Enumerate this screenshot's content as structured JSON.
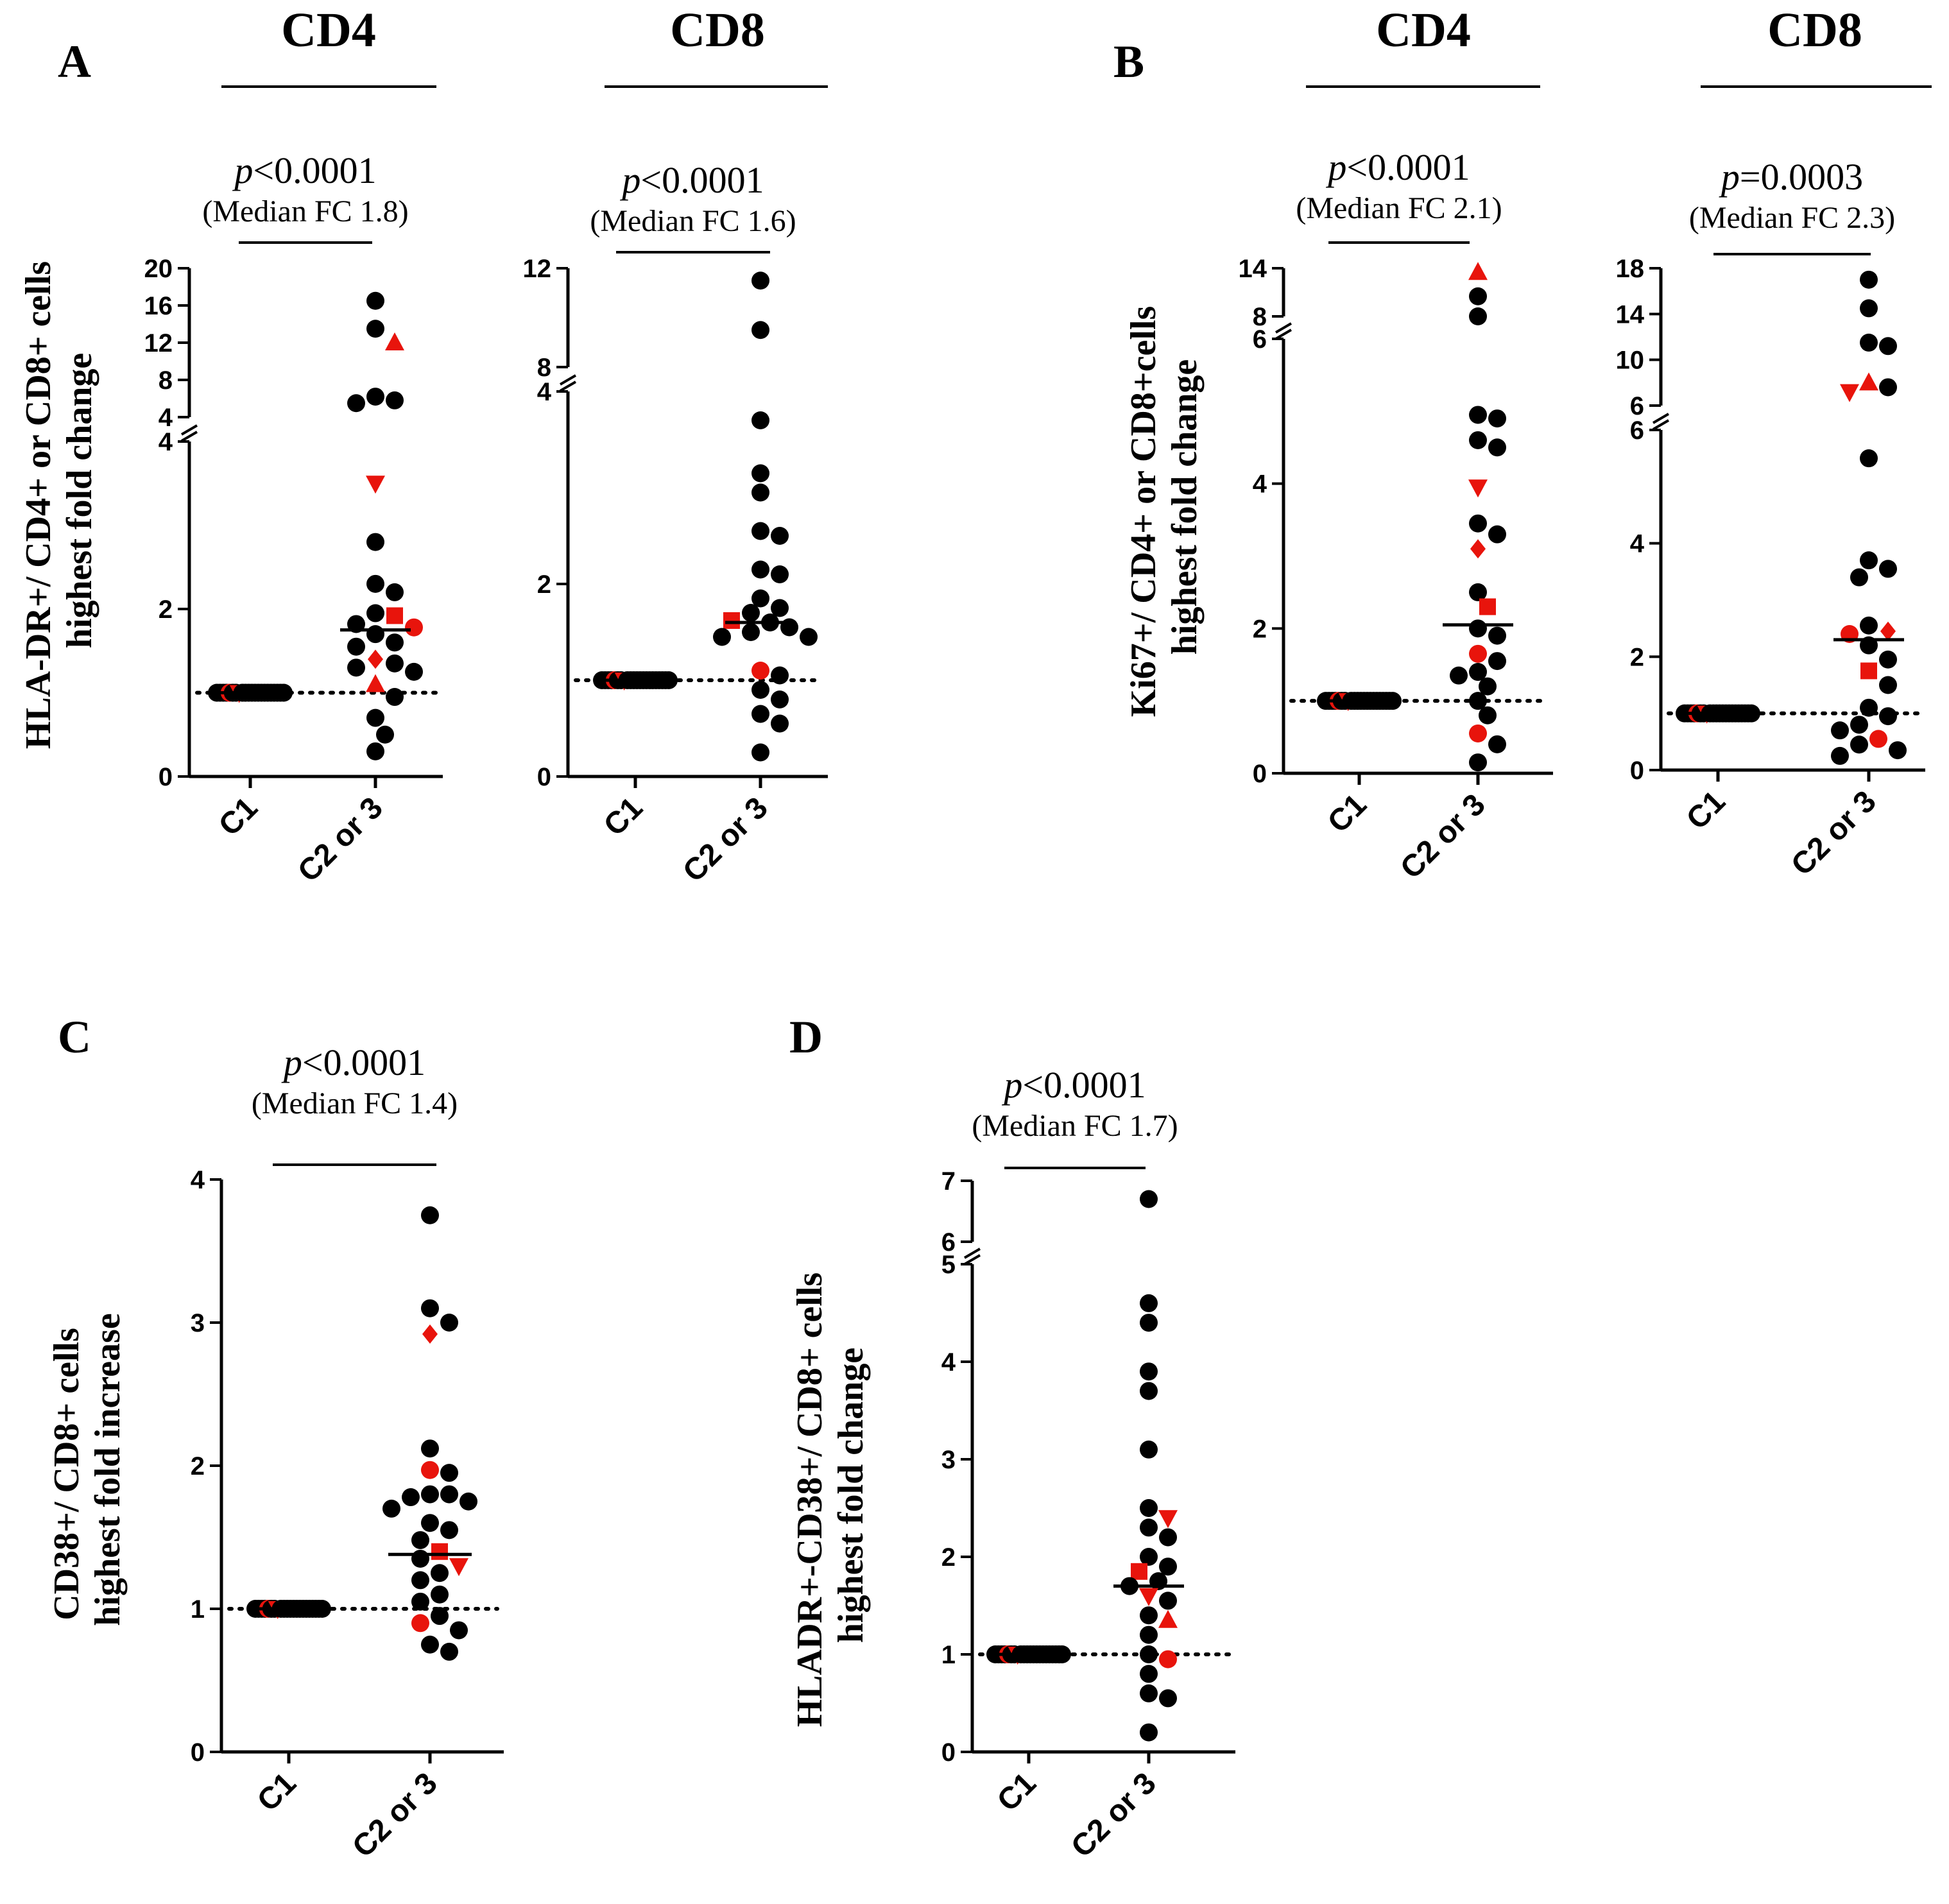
{
  "colors": {
    "ink": "#000000",
    "highlight": "#e8140c"
  },
  "panel_letters": {
    "A": "A",
    "B": "B",
    "C": "C",
    "D": "D"
  },
  "group_titles": {
    "a_cd4": "CD4",
    "a_cd8": "CD8",
    "b_cd4": "CD4",
    "b_cd8": "CD8"
  },
  "y_labels": {
    "a": [
      "HLA-DR+/ CD4+ or CD8+ cells",
      "highest fold change"
    ],
    "b": [
      "Ki67+/ CD4+ or CD8+cells",
      "highest fold change"
    ],
    "c": [
      "CD38+/ CD8+ cells",
      "highest fold increase"
    ],
    "d": [
      "HLADR+-CD38+/ CD8+ cells",
      "highest fold change"
    ]
  },
  "chart_data": [
    {
      "id": "A-CD4",
      "type": "scatter",
      "title": "CD4",
      "p_prefix": "p",
      "p_rest": "<0.0001",
      "median_label": "(Median FC 1.8)",
      "categories": [
        "C1",
        "C2 or 3"
      ],
      "y_ticks": [
        "0",
        "2",
        "4",
        "4",
        "8",
        "12",
        "16",
        "20"
      ],
      "reference_line": 1,
      "median": 1.75,
      "c1": {
        "n": 22,
        "value": 1.0
      },
      "c2": [
        {
          "y": 16.5
        },
        {
          "y": 13.5
        },
        {
          "y": 12.0,
          "shape": "triangle-up",
          "red": true
        },
        {
          "y": 6.2
        },
        {
          "y": 5.8
        },
        {
          "y": 5.5
        },
        {
          "y": 3.5,
          "shape": "triangle-down",
          "red": true
        },
        {
          "y": 2.8
        },
        {
          "y": 2.3
        },
        {
          "y": 2.2
        },
        {
          "y": 1.95
        },
        {
          "y": 1.92,
          "shape": "square",
          "red": true
        },
        {
          "y": 1.82
        },
        {
          "y": 1.78,
          "red": true
        },
        {
          "y": 1.7
        },
        {
          "y": 1.6
        },
        {
          "y": 1.55
        },
        {
          "y": 1.4,
          "shape": "diamond",
          "red": true
        },
        {
          "y": 1.35
        },
        {
          "y": 1.3
        },
        {
          "y": 1.25
        },
        {
          "y": 1.1,
          "shape": "triangle-up",
          "red": true
        },
        {
          "y": 0.95
        },
        {
          "y": 0.7
        },
        {
          "y": 0.5
        },
        {
          "y": 0.3
        }
      ]
    },
    {
      "id": "A-CD8",
      "type": "scatter",
      "title": "CD8",
      "p_prefix": "p",
      "p_rest": "<0.0001",
      "median_label": "(Median FC 1.6)",
      "categories": [
        "C1",
        "C2 or 3"
      ],
      "y_ticks": [
        "0",
        "2",
        "4",
        "8",
        "12"
      ],
      "reference_line": 1,
      "median": 1.6,
      "c1": {
        "n": 22,
        "value": 1.0
      },
      "c2": [
        {
          "y": 11.5
        },
        {
          "y": 9.5
        },
        {
          "y": 3.7
        },
        {
          "y": 3.15
        },
        {
          "y": 2.95
        },
        {
          "y": 2.55
        },
        {
          "y": 2.5
        },
        {
          "y": 2.15
        },
        {
          "y": 2.1
        },
        {
          "y": 1.85
        },
        {
          "y": 1.75
        },
        {
          "y": 1.7
        },
        {
          "y": 1.62,
          "shape": "square",
          "red": true
        },
        {
          "y": 1.6
        },
        {
          "y": 1.55
        },
        {
          "y": 1.5
        },
        {
          "y": 1.45
        },
        {
          "y": 1.45
        },
        {
          "y": 1.1,
          "red": true
        },
        {
          "y": 1.05
        },
        {
          "y": 0.9
        },
        {
          "y": 0.8
        },
        {
          "y": 0.65
        },
        {
          "y": 0.55
        },
        {
          "y": 0.25
        }
      ]
    },
    {
      "id": "B-CD4",
      "type": "scatter",
      "title": "CD4",
      "p_prefix": "p",
      "p_rest": "<0.0001",
      "median_label": "(Median FC 2.1)",
      "categories": [
        "C1",
        "C2 or 3"
      ],
      "y_ticks": [
        "0",
        "2",
        "4",
        "6",
        "8",
        "14"
      ],
      "reference_line": 1,
      "median": 2.05,
      "c1": {
        "n": 22,
        "value": 1.0
      },
      "c2": [
        {
          "y": 13.5,
          "shape": "triangle-up",
          "red": true
        },
        {
          "y": 10.5
        },
        {
          "y": 7.2
        },
        {
          "y": 4.95
        },
        {
          "y": 4.9
        },
        {
          "y": 4.6
        },
        {
          "y": 4.5
        },
        {
          "y": 3.95,
          "shape": "triangle-down",
          "red": true
        },
        {
          "y": 3.45
        },
        {
          "y": 3.3
        },
        {
          "y": 3.1,
          "shape": "diamond",
          "red": true
        },
        {
          "y": 2.5
        },
        {
          "y": 2.3,
          "shape": "square",
          "red": true
        },
        {
          "y": 2.0
        },
        {
          "y": 1.9
        },
        {
          "y": 1.65,
          "red": true
        },
        {
          "y": 1.55
        },
        {
          "y": 1.4
        },
        {
          "y": 1.35
        },
        {
          "y": 1.2
        },
        {
          "y": 1.0
        },
        {
          "y": 0.8
        },
        {
          "y": 0.55,
          "red": true
        },
        {
          "y": 0.4
        },
        {
          "y": 0.15
        }
      ]
    },
    {
      "id": "B-CD8",
      "type": "scatter",
      "title": "CD8",
      "p_prefix": "p",
      "p_rest": "=0.0003",
      "median_label": "(Median FC 2.3)",
      "categories": [
        "C1",
        "C2 or 3"
      ],
      "y_ticks": [
        "0",
        "2",
        "4",
        "6",
        "6",
        "10",
        "14",
        "18"
      ],
      "reference_line": 1,
      "median": 2.3,
      "c1": {
        "n": 22,
        "value": 1.0
      },
      "c2": [
        {
          "y": 17.0
        },
        {
          "y": 14.5
        },
        {
          "y": 11.5
        },
        {
          "y": 11.2
        },
        {
          "y": 8.0,
          "shape": "triangle-up",
          "red": true
        },
        {
          "y": 7.6
        },
        {
          "y": 7.2,
          "shape": "triangle-down",
          "red": true
        },
        {
          "y": 5.5
        },
        {
          "y": 3.7
        },
        {
          "y": 3.55
        },
        {
          "y": 3.4
        },
        {
          "y": 2.55
        },
        {
          "y": 2.45,
          "shape": "diamond",
          "red": true
        },
        {
          "y": 2.4,
          "red": true
        },
        {
          "y": 2.2
        },
        {
          "y": 1.95
        },
        {
          "y": 1.75,
          "shape": "square",
          "red": true
        },
        {
          "y": 1.5
        },
        {
          "y": 1.1
        },
        {
          "y": 0.95
        },
        {
          "y": 0.8
        },
        {
          "y": 0.7
        },
        {
          "y": 0.55,
          "red": true
        },
        {
          "y": 0.45
        },
        {
          "y": 0.35
        },
        {
          "y": 0.25
        }
      ]
    },
    {
      "id": "C",
      "type": "scatter",
      "title": "",
      "p_prefix": "p",
      "p_rest": "<0.0001",
      "median_label": "(Median FC 1.4)",
      "categories": [
        "C1",
        "C2 or 3"
      ],
      "y_ticks": [
        "0",
        "1",
        "2",
        "3",
        "4"
      ],
      "reference_line": 1,
      "median": 1.38,
      "c1": {
        "n": 22,
        "value": 1.0
      },
      "c2": [
        {
          "y": 3.75
        },
        {
          "y": 3.1
        },
        {
          "y": 3.0
        },
        {
          "y": 2.92,
          "shape": "diamond",
          "red": true
        },
        {
          "y": 2.12
        },
        {
          "y": 1.97,
          "red": true
        },
        {
          "y": 1.95
        },
        {
          "y": 1.8
        },
        {
          "y": 1.8
        },
        {
          "y": 1.78
        },
        {
          "y": 1.75
        },
        {
          "y": 1.7
        },
        {
          "y": 1.6
        },
        {
          "y": 1.55
        },
        {
          "y": 1.48
        },
        {
          "y": 1.4,
          "shape": "square",
          "red": true
        },
        {
          "y": 1.35
        },
        {
          "y": 1.3,
          "shape": "triangle-down",
          "red": true
        },
        {
          "y": 1.25
        },
        {
          "y": 1.2
        },
        {
          "y": 1.1
        },
        {
          "y": 1.05
        },
        {
          "y": 0.95
        },
        {
          "y": 0.9,
          "red": true
        },
        {
          "y": 0.85
        },
        {
          "y": 0.75
        },
        {
          "y": 0.7
        }
      ]
    },
    {
      "id": "D",
      "type": "scatter",
      "title": "",
      "p_prefix": "p",
      "p_rest": "<0.0001",
      "median_label": "(Median FC 1.7)",
      "categories": [
        "C1",
        "C2 or 3"
      ],
      "y_ticks": [
        "0",
        "1",
        "2",
        "3",
        "4",
        "5",
        "6",
        "7"
      ],
      "reference_line": 1,
      "median": 1.7,
      "c1": {
        "n": 22,
        "value": 1.0
      },
      "c2": [
        {
          "y": 6.7
        },
        {
          "y": 4.6
        },
        {
          "y": 4.4
        },
        {
          "y": 3.9
        },
        {
          "y": 3.7
        },
        {
          "y": 3.1
        },
        {
          "y": 2.5
        },
        {
          "y": 2.4,
          "shape": "triangle-down",
          "red": true
        },
        {
          "y": 2.3
        },
        {
          "y": 2.2
        },
        {
          "y": 2.0
        },
        {
          "y": 1.9
        },
        {
          "y": 1.85,
          "shape": "square",
          "red": true
        },
        {
          "y": 1.75
        },
        {
          "y": 1.7
        },
        {
          "y": 1.6,
          "shape": "triangle-down",
          "red": true
        },
        {
          "y": 1.55
        },
        {
          "y": 1.4
        },
        {
          "y": 1.35,
          "shape": "triangle-up",
          "red": true
        },
        {
          "y": 1.2
        },
        {
          "y": 1.0
        },
        {
          "y": 0.95,
          "red": true
        },
        {
          "y": 0.8
        },
        {
          "y": 0.6
        },
        {
          "y": 0.55
        },
        {
          "y": 0.2
        }
      ]
    }
  ]
}
